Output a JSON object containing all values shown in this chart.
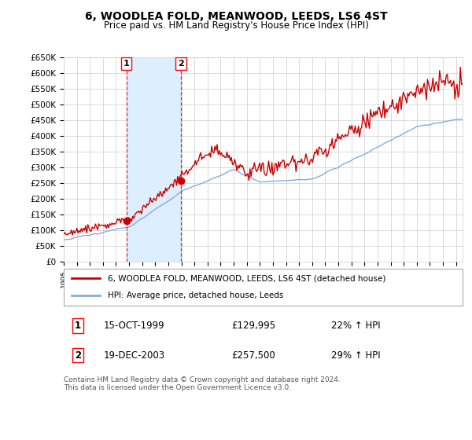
{
  "title": "6, WOODLEA FOLD, MEANWOOD, LEEDS, LS6 4ST",
  "subtitle": "Price paid vs. HM Land Registry's House Price Index (HPI)",
  "ylabel_ticks": [
    "£0",
    "£50K",
    "£100K",
    "£150K",
    "£200K",
    "£250K",
    "£300K",
    "£350K",
    "£400K",
    "£450K",
    "£500K",
    "£550K",
    "£600K",
    "£650K"
  ],
  "ytick_values": [
    0,
    50000,
    100000,
    150000,
    200000,
    250000,
    300000,
    350000,
    400000,
    450000,
    500000,
    550000,
    600000,
    650000
  ],
  "ylim": [
    0,
    650000
  ],
  "xlim_start": 1995.0,
  "xlim_end": 2025.5,
  "transaction1_x": 1999.79,
  "transaction1_y": 129995,
  "transaction2_x": 2003.96,
  "transaction2_y": 257500,
  "red_line_color": "#cc0000",
  "blue_line_color": "#88aadd",
  "shade_color": "#ddeeff",
  "transaction_marker_color": "#cc0000",
  "legend_label_red": "6, WOODLEA FOLD, MEANWOOD, LEEDS, LS6 4ST (detached house)",
  "legend_label_blue": "HPI: Average price, detached house, Leeds",
  "table_row1": [
    "1",
    "15-OCT-1999",
    "£129,995",
    "22% ↑ HPI"
  ],
  "table_row2": [
    "2",
    "19-DEC-2003",
    "£257,500",
    "29% ↑ HPI"
  ],
  "footer": "Contains HM Land Registry data © Crown copyright and database right 2024.\nThis data is licensed under the Open Government Licence v3.0.",
  "background_color": "#ffffff",
  "grid_color": "#cccccc"
}
